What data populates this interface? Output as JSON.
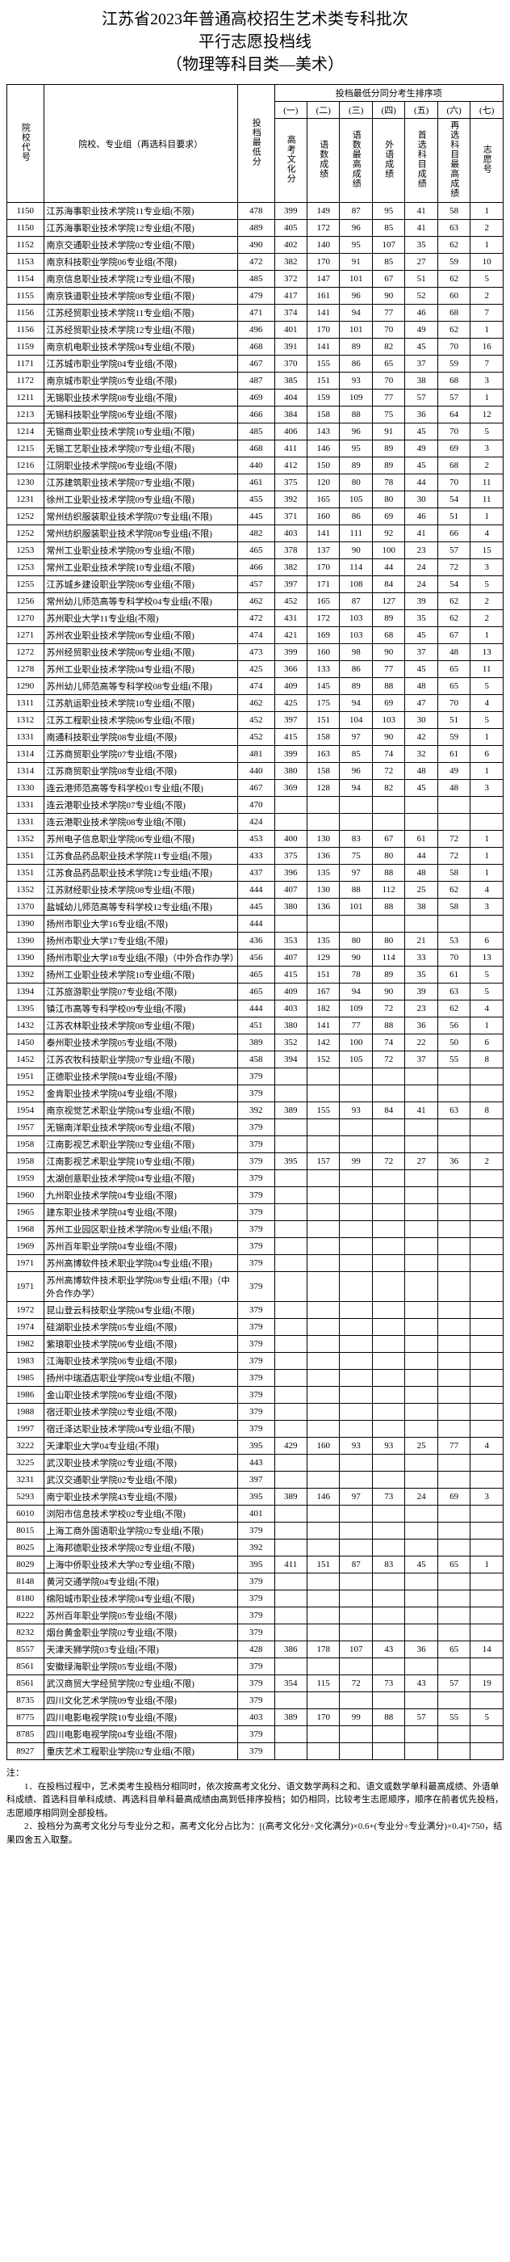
{
  "title_l1": "江苏省2023年普通高校招生艺术类专科批次",
  "title_l2": "平行志愿投档线",
  "title_l3": "（物理等科目类—美术）",
  "header": {
    "code": "院校代号",
    "name": "院校、专业组（再选科目要求）",
    "min": "投档最低分",
    "sort_title": "投档最低分同分考生排序项",
    "cols": [
      "(一)",
      "(二)",
      "(三)",
      "(四)",
      "(五)",
      "(六)",
      "(七)"
    ],
    "sub": [
      "高考文化分",
      "语数成绩",
      "语数最高成绩",
      "外语成绩",
      "首选科目成绩",
      "再选科目最高成绩",
      "志愿号"
    ]
  },
  "rows": [
    [
      "1150",
      "江苏海事职业技术学院11专业组(不限)",
      "478",
      "399",
      "149",
      "87",
      "95",
      "41",
      "58",
      "1"
    ],
    [
      "1150",
      "江苏海事职业技术学院12专业组(不限)",
      "489",
      "405",
      "172",
      "96",
      "85",
      "41",
      "63",
      "2"
    ],
    [
      "1152",
      "南京交通职业技术学院02专业组(不限)",
      "490",
      "402",
      "140",
      "95",
      "107",
      "35",
      "62",
      "1"
    ],
    [
      "1153",
      "南京科技职业学院06专业组(不限)",
      "472",
      "382",
      "170",
      "91",
      "85",
      "27",
      "59",
      "10"
    ],
    [
      "1154",
      "南京信息职业技术学院12专业组(不限)",
      "485",
      "372",
      "147",
      "101",
      "67",
      "51",
      "62",
      "5"
    ],
    [
      "1155",
      "南京铁道职业技术学院08专业组(不限)",
      "479",
      "417",
      "161",
      "96",
      "90",
      "52",
      "60",
      "2"
    ],
    [
      "1156",
      "江苏经贸职业技术学院11专业组(不限)",
      "471",
      "374",
      "141",
      "94",
      "77",
      "46",
      "68",
      "7"
    ],
    [
      "1156",
      "江苏经贸职业技术学院12专业组(不限)",
      "496",
      "401",
      "170",
      "101",
      "70",
      "49",
      "62",
      "1"
    ],
    [
      "1159",
      "南京机电职业技术学院04专业组(不限)",
      "468",
      "391",
      "141",
      "89",
      "82",
      "45",
      "70",
      "16"
    ],
    [
      "1171",
      "江苏城市职业学院04专业组(不限)",
      "467",
      "370",
      "155",
      "86",
      "65",
      "37",
      "59",
      "7"
    ],
    [
      "1172",
      "南京城市职业学院05专业组(不限)",
      "487",
      "385",
      "151",
      "93",
      "70",
      "38",
      "68",
      "3"
    ],
    [
      "1211",
      "无锡职业技术学院08专业组(不限)",
      "469",
      "404",
      "159",
      "109",
      "77",
      "57",
      "57",
      "1"
    ],
    [
      "1213",
      "无锡科技职业学院06专业组(不限)",
      "466",
      "384",
      "158",
      "88",
      "75",
      "36",
      "64",
      "12"
    ],
    [
      "1214",
      "无锡商业职业技术学院10专业组(不限)",
      "485",
      "406",
      "143",
      "96",
      "91",
      "45",
      "70",
      "5"
    ],
    [
      "1215",
      "无锡工艺职业技术学院07专业组(不限)",
      "468",
      "411",
      "146",
      "95",
      "89",
      "49",
      "69",
      "3"
    ],
    [
      "1216",
      "江阴职业技术学院06专业组(不限)",
      "440",
      "412",
      "150",
      "89",
      "89",
      "45",
      "68",
      "2"
    ],
    [
      "1230",
      "江苏建筑职业技术学院07专业组(不限)",
      "461",
      "375",
      "120",
      "80",
      "78",
      "44",
      "70",
      "11"
    ],
    [
      "1231",
      "徐州工业职业技术学院09专业组(不限)",
      "455",
      "392",
      "165",
      "105",
      "80",
      "30",
      "54",
      "11"
    ],
    [
      "1252",
      "常州纺织服装职业技术学院07专业组(不限)",
      "445",
      "371",
      "160",
      "86",
      "69",
      "46",
      "51",
      "1"
    ],
    [
      "1252",
      "常州纺织服装职业技术学院08专业组(不限)",
      "482",
      "403",
      "141",
      "111",
      "92",
      "41",
      "66",
      "4"
    ],
    [
      "1253",
      "常州工业职业技术学院09专业组(不限)",
      "465",
      "378",
      "137",
      "90",
      "100",
      "23",
      "57",
      "15"
    ],
    [
      "1253",
      "常州工业职业技术学院10专业组(不限)",
      "466",
      "382",
      "170",
      "114",
      "44",
      "24",
      "72",
      "3"
    ],
    [
      "1255",
      "江苏城乡建设职业学院06专业组(不限)",
      "457",
      "397",
      "171",
      "108",
      "84",
      "24",
      "54",
      "5"
    ],
    [
      "1256",
      "常州幼儿师范高等专科学校04专业组(不限)",
      "462",
      "452",
      "165",
      "87",
      "127",
      "39",
      "62",
      "2"
    ],
    [
      "1270",
      "苏州职业大学11专业组(不限)",
      "472",
      "431",
      "172",
      "103",
      "89",
      "35",
      "62",
      "2"
    ],
    [
      "1271",
      "苏州农业职业技术学院06专业组(不限)",
      "474",
      "421",
      "169",
      "103",
      "68",
      "45",
      "67",
      "1"
    ],
    [
      "1272",
      "苏州经贸职业技术学院06专业组(不限)",
      "473",
      "399",
      "160",
      "98",
      "90",
      "37",
      "48",
      "13"
    ],
    [
      "1278",
      "苏州工业职业技术学院04专业组(不限)",
      "425",
      "366",
      "133",
      "86",
      "77",
      "45",
      "65",
      "11"
    ],
    [
      "1290",
      "苏州幼儿师范高等专科学校08专业组(不限)",
      "474",
      "409",
      "145",
      "89",
      "88",
      "48",
      "65",
      "5"
    ],
    [
      "1311",
      "江苏航运职业技术学院10专业组(不限)",
      "462",
      "425",
      "175",
      "94",
      "69",
      "47",
      "70",
      "4"
    ],
    [
      "1312",
      "江苏工程职业技术学院06专业组(不限)",
      "452",
      "397",
      "151",
      "104",
      "103",
      "30",
      "51",
      "5"
    ],
    [
      "1331",
      "南通科技职业学院08专业组(不限)",
      "452",
      "415",
      "158",
      "97",
      "90",
      "42",
      "59",
      "1"
    ],
    [
      "1314",
      "江苏商贸职业学院07专业组(不限)",
      "481",
      "399",
      "163",
      "85",
      "74",
      "32",
      "61",
      "6"
    ],
    [
      "1314",
      "江苏商贸职业学院08专业组(不限)",
      "440",
      "380",
      "158",
      "96",
      "72",
      "48",
      "49",
      "1"
    ],
    [
      "1330",
      "连云港师范高等专科学校01专业组(不限)",
      "467",
      "369",
      "128",
      "94",
      "82",
      "45",
      "48",
      "3"
    ],
    [
      "1331",
      "连云港职业技术学院07专业组(不限)",
      "470",
      "",
      "",
      "",
      "",
      "",
      "",
      ""
    ],
    [
      "1331",
      "连云港职业技术学院08专业组(不限)",
      "424",
      "",
      "",
      "",
      "",
      "",
      "",
      ""
    ],
    [
      "1352",
      "苏州电子信息职业学院06专业组(不限)",
      "453",
      "400",
      "130",
      "83",
      "67",
      "61",
      "72",
      "1"
    ],
    [
      "1351",
      "江苏食品药品职业技术学院11专业组(不限)",
      "433",
      "375",
      "136",
      "75",
      "80",
      "44",
      "72",
      "1"
    ],
    [
      "1351",
      "江苏食品药品职业技术学院12专业组(不限)",
      "437",
      "396",
      "135",
      "97",
      "88",
      "48",
      "58",
      "1"
    ],
    [
      "1352",
      "江苏财经职业技术学院08专业组(不限)",
      "444",
      "407",
      "130",
      "88",
      "112",
      "25",
      "62",
      "4"
    ],
    [
      "1370",
      "盐城幼儿师范高等专科学校12专业组(不限)",
      "445",
      "380",
      "136",
      "101",
      "88",
      "38",
      "58",
      "3"
    ],
    [
      "1390",
      "扬州市职业大学16专业组(不限)",
      "444",
      "",
      "",
      "",
      "",
      "",
      "",
      ""
    ],
    [
      "1390",
      "扬州市职业大学17专业组(不限)",
      "436",
      "353",
      "135",
      "80",
      "80",
      "21",
      "53",
      "6"
    ],
    [
      "1390",
      "扬州市职业大学18专业组(不限)（中外合作办学）",
      "456",
      "407",
      "129",
      "90",
      "114",
      "33",
      "70",
      "13"
    ],
    [
      "1392",
      "扬州工业职业技术学院10专业组(不限)",
      "465",
      "415",
      "151",
      "78",
      "89",
      "35",
      "61",
      "5"
    ],
    [
      "1394",
      "江苏旅游职业学院07专业组(不限)",
      "465",
      "409",
      "167",
      "94",
      "90",
      "39",
      "63",
      "5"
    ],
    [
      "1395",
      "镇江市高等专科学校09专业组(不限)",
      "444",
      "403",
      "182",
      "109",
      "72",
      "23",
      "62",
      "4"
    ],
    [
      "1432",
      "江苏农林职业技术学院08专业组(不限)",
      "451",
      "380",
      "141",
      "77",
      "88",
      "36",
      "56",
      "1"
    ],
    [
      "1450",
      "泰州职业技术学院05专业组(不限)",
      "389",
      "352",
      "142",
      "100",
      "74",
      "22",
      "50",
      "6"
    ],
    [
      "1452",
      "江苏农牧科技职业学院07专业组(不限)",
      "458",
      "394",
      "152",
      "105",
      "72",
      "37",
      "55",
      "8"
    ],
    [
      "1951",
      "正德职业技术学院04专业组(不限)",
      "379",
      "",
      "",
      "",
      "",
      "",
      "",
      ""
    ],
    [
      "1952",
      "金肯职业技术学院04专业组(不限)",
      "379",
      "",
      "",
      "",
      "",
      "",
      "",
      ""
    ],
    [
      "1954",
      "南京视觉艺术职业学院04专业组(不限)",
      "392",
      "389",
      "155",
      "93",
      "84",
      "41",
      "63",
      "8"
    ],
    [
      "1957",
      "无锡南洋职业技术学院06专业组(不限)",
      "379",
      "",
      "",
      "",
      "",
      "",
      "",
      ""
    ],
    [
      "1958",
      "江南影视艺术职业学院02专业组(不限)",
      "379",
      "",
      "",
      "",
      "",
      "",
      "",
      ""
    ],
    [
      "1958",
      "江南影视艺术职业学院10专业组(不限)",
      "379",
      "395",
      "157",
      "99",
      "72",
      "27",
      "36",
      "2"
    ],
    [
      "1959",
      "太湖创意职业技术学院04专业组(不限)",
      "379",
      "",
      "",
      "",
      "",
      "",
      "",
      ""
    ],
    [
      "1960",
      "九州职业技术学院04专业组(不限)",
      "379",
      "",
      "",
      "",
      "",
      "",
      "",
      ""
    ],
    [
      "1965",
      "建东职业技术学院04专业组(不限)",
      "379",
      "",
      "",
      "",
      "",
      "",
      "",
      ""
    ],
    [
      "1968",
      "苏州工业园区职业技术学院06专业组(不限)",
      "379",
      "",
      "",
      "",
      "",
      "",
      "",
      ""
    ],
    [
      "1969",
      "苏州百年职业学院04专业组(不限)",
      "379",
      "",
      "",
      "",
      "",
      "",
      "",
      ""
    ],
    [
      "1971",
      "苏州高博软件技术职业学院04专业组(不限)",
      "379",
      "",
      "",
      "",
      "",
      "",
      "",
      ""
    ],
    [
      "1971",
      "苏州高博软件技术职业学院08专业组(不限)（中外合作办学）",
      "379",
      "",
      "",
      "",
      "",
      "",
      "",
      ""
    ],
    [
      "1972",
      "昆山登云科技职业学院04专业组(不限)",
      "379",
      "",
      "",
      "",
      "",
      "",
      "",
      ""
    ],
    [
      "1974",
      "硅湖职业技术学院05专业组(不限)",
      "379",
      "",
      "",
      "",
      "",
      "",
      "",
      ""
    ],
    [
      "1982",
      "紫琅职业技术学院06专业组(不限)",
      "379",
      "",
      "",
      "",
      "",
      "",
      "",
      ""
    ],
    [
      "1983",
      "江海职业技术学院06专业组(不限)",
      "379",
      "",
      "",
      "",
      "",
      "",
      "",
      ""
    ],
    [
      "1985",
      "扬州中瑞酒店职业学院04专业组(不限)",
      "379",
      "",
      "",
      "",
      "",
      "",
      "",
      ""
    ],
    [
      "1986",
      "金山职业技术学院06专业组(不限)",
      "379",
      "",
      "",
      "",
      "",
      "",
      "",
      ""
    ],
    [
      "1988",
      "宿迁职业技术学院02专业组(不限)",
      "379",
      "",
      "",
      "",
      "",
      "",
      "",
      ""
    ],
    [
      "1997",
      "宿迁泽达职业技术学院04专业组(不限)",
      "379",
      "",
      "",
      "",
      "",
      "",
      "",
      ""
    ],
    [
      "3222",
      "天津职业大学04专业组(不限)",
      "395",
      "429",
      "160",
      "93",
      "93",
      "25",
      "77",
      "4"
    ],
    [
      "3225",
      "武汉职业技术学院02专业组(不限)",
      "443",
      "",
      "",
      "",
      "",
      "",
      "",
      ""
    ],
    [
      "3231",
      "武汉交通职业学院02专业组(不限)",
      "397",
      "",
      "",
      "",
      "",
      "",
      "",
      ""
    ],
    [
      "5293",
      "南宁职业技术学院43专业组(不限)",
      "395",
      "389",
      "146",
      "97",
      "73",
      "24",
      "69",
      "3"
    ],
    [
      "6010",
      "浏阳市信息技术学校02专业组(不限)",
      "401",
      "",
      "",
      "",
      "",
      "",
      "",
      ""
    ],
    [
      "8015",
      "上海工商外国语职业学院02专业组(不限)",
      "379",
      "",
      "",
      "",
      "",
      "",
      "",
      ""
    ],
    [
      "8025",
      "上海邦德职业技术学院02专业组(不限)",
      "392",
      "",
      "",
      "",
      "",
      "",
      "",
      ""
    ],
    [
      "8029",
      "上海中侨职业技术大学02专业组(不限)",
      "395",
      "411",
      "151",
      "87",
      "83",
      "45",
      "65",
      "1"
    ],
    [
      "8148",
      "黄河交通学院04专业组(不限)",
      "379",
      "",
      "",
      "",
      "",
      "",
      "",
      ""
    ],
    [
      "8180",
      "绵阳城市职业技术学院04专业组(不限)",
      "379",
      "",
      "",
      "",
      "",
      "",
      "",
      ""
    ],
    [
      "8222",
      "苏州百年职业学院05专业组(不限)",
      "379",
      "",
      "",
      "",
      "",
      "",
      "",
      ""
    ],
    [
      "8232",
      "烟台黄金职业学院02专业组(不限)",
      "379",
      "",
      "",
      "",
      "",
      "",
      "",
      ""
    ],
    [
      "8557",
      "天津天狮学院03专业组(不限)",
      "428",
      "386",
      "178",
      "107",
      "43",
      "36",
      "65",
      "14"
    ],
    [
      "8561",
      "安徽绿海职业学院05专业组(不限)",
      "379",
      "",
      "",
      "",
      "",
      "",
      "",
      ""
    ],
    [
      "8561",
      "武汉商贸大学经贸学院02专业组(不限)",
      "379",
      "354",
      "115",
      "72",
      "73",
      "43",
      "57",
      "19"
    ],
    [
      "8735",
      "四川文化艺术学院09专业组(不限)",
      "379",
      "",
      "",
      "",
      "",
      "",
      "",
      ""
    ],
    [
      "8775",
      "四川电影电视学院10专业组(不限)",
      "403",
      "389",
      "170",
      "99",
      "88",
      "57",
      "55",
      "5"
    ],
    [
      "8785",
      "四川电影电视学院04专业组(不限)",
      "379",
      "",
      "",
      "",
      "",
      "",
      "",
      ""
    ],
    [
      "8927",
      "重庆艺术工程职业学院02专业组(不限)",
      "379",
      "",
      "",
      "",
      "",
      "",
      "",
      ""
    ]
  ],
  "notes_title": "注：",
  "notes": [
    "1．在投档过程中，艺术类考生投档分相同时，依次按高考文化分、语文数学两科之和、语文或数学单科最高成绩、外语单科成绩、首选科目单科成绩、再选科目单科最高成绩由高到低排序投档；如仍相同，比较考生志愿顺序，顺序在前者优先投档，志愿顺序相同则全部投档。",
    "2．投档分为高考文化分与专业分之和，高考文化分占比为：[(高考文化分÷文化满分)×0.6+(专业分÷专业满分)×0.4]×750，结果四舍五入取整。"
  ]
}
